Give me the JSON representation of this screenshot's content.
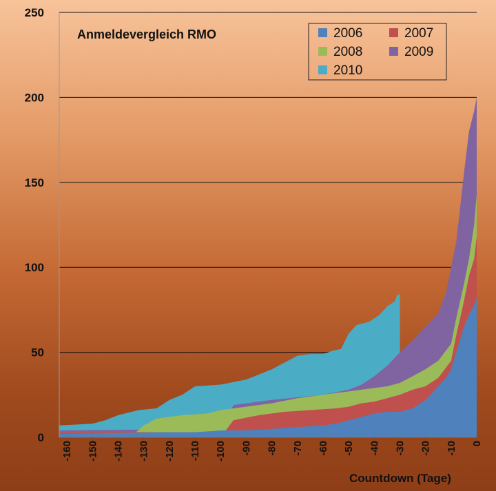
{
  "chart_data": {
    "type": "area",
    "title": "Anmeldevergleich RMO",
    "xlabel": "Countdown (Tage)",
    "ylabel": "",
    "xlim": [
      -163,
      0
    ],
    "ylim": [
      0,
      250
    ],
    "yticks": [
      0,
      50,
      100,
      150,
      200,
      250
    ],
    "xticks": [
      -160,
      -150,
      -140,
      -130,
      -120,
      -110,
      -100,
      -90,
      -80,
      -70,
      -60,
      -50,
      -40,
      -30,
      -20,
      -10,
      0
    ],
    "grid": true,
    "legend_position": "top-right",
    "series": [
      {
        "name": "2010",
        "color": "#4bacc6",
        "x": [
          -163,
          -150,
          -145,
          -140,
          -132,
          -125,
          -120,
          -115,
          -110,
          -100,
          -90,
          -85,
          -80,
          -75,
          -70,
          -65,
          -60,
          -56,
          -53,
          -50,
          -47,
          -42,
          -38,
          -35,
          -32,
          -31,
          -30,
          -30,
          -20,
          0
        ],
        "values": [
          7,
          8,
          10,
          13,
          16,
          17,
          22,
          25,
          30,
          31,
          34,
          37,
          40,
          44,
          48,
          49,
          49,
          51,
          52,
          61,
          66,
          68,
          72,
          77,
          80,
          84,
          84,
          0,
          0,
          0
        ]
      },
      {
        "name": "2009",
        "color": "#8064a2",
        "x": [
          -163,
          -100,
          -95,
          -80,
          -60,
          -50,
          -45,
          -40,
          -35,
          -30,
          -25,
          -20,
          -15,
          -12,
          -10,
          -8,
          -5,
          -3,
          -1,
          0
        ],
        "values": [
          4,
          5,
          19,
          22,
          25,
          28,
          31,
          36,
          42,
          50,
          57,
          65,
          73,
          85,
          100,
          115,
          155,
          180,
          192,
          200
        ]
      },
      {
        "name": "2008",
        "color": "#9bbb59",
        "x": [
          -163,
          -133,
          -130,
          -125,
          -115,
          -105,
          -100,
          -90,
          -80,
          -70,
          -60,
          -55,
          -50,
          -45,
          -40,
          -35,
          -30,
          -25,
          -20,
          -15,
          -10,
          -8,
          -5,
          -3,
          -1,
          0
        ],
        "values": [
          3,
          3,
          7,
          11,
          13,
          14,
          16,
          18,
          20,
          23,
          25,
          26,
          27,
          28,
          29,
          30,
          32,
          36,
          40,
          45,
          55,
          70,
          90,
          105,
          125,
          143
        ]
      },
      {
        "name": "2007",
        "color": "#c0504d",
        "x": [
          -163,
          -100,
          -98,
          -95,
          -85,
          -75,
          -65,
          -55,
          -50,
          -45,
          -40,
          -35,
          -30,
          -25,
          -20,
          -15,
          -10,
          -8,
          -5,
          -3,
          -1,
          0
        ],
        "values": [
          3,
          3,
          4,
          10,
          13,
          15,
          16,
          17,
          18,
          20,
          21,
          23,
          25,
          28,
          30,
          35,
          45,
          60,
          80,
          95,
          105,
          118
        ]
      },
      {
        "name": "2006",
        "color": "#4f81bd",
        "x": [
          -163,
          -120,
          -110,
          -100,
          -90,
          -80,
          -70,
          -60,
          -55,
          -50,
          -45,
          -40,
          -35,
          -30,
          -25,
          -20,
          -15,
          -12,
          -10,
          -8,
          -5,
          -3,
          -1,
          0
        ],
        "values": [
          2,
          3,
          3,
          4,
          4,
          5,
          6,
          7,
          8,
          10,
          12,
          14,
          15,
          15,
          17,
          22,
          30,
          35,
          40,
          50,
          65,
          72,
          78,
          82
        ]
      }
    ],
    "legend": [
      "2006",
      "2007",
      "2008",
      "2009",
      "2010"
    ]
  }
}
